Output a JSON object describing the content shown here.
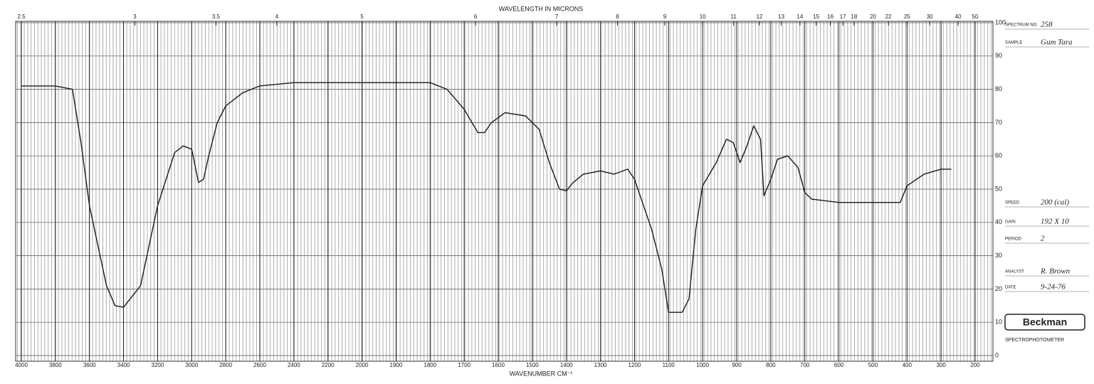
{
  "chart_data": {
    "type": "line",
    "x_label": "WAVENUMBER CM⁻¹",
    "x2_label": "WAVELENGTH IN MICRONS",
    "x": [
      4000,
      3800,
      3700,
      3650,
      3600,
      3500,
      3450,
      3400,
      3300,
      3200,
      3100,
      3050,
      3000,
      2960,
      2930,
      2900,
      2850,
      2800,
      2700,
      2600,
      2400,
      2200,
      2000,
      1800,
      1750,
      1700,
      1660,
      1640,
      1620,
      1580,
      1520,
      1480,
      1450,
      1420,
      1400,
      1380,
      1350,
      1300,
      1260,
      1220,
      1200,
      1150,
      1120,
      1100,
      1060,
      1040,
      1020,
      1000,
      960,
      930,
      910,
      890,
      870,
      850,
      830,
      820,
      800,
      780,
      750,
      720,
      700,
      680,
      600,
      500,
      420,
      400,
      350,
      300,
      270
    ],
    "series": [
      {
        "color": "#1a1a1a",
        "values": [
          81,
          81,
          80,
          64,
          45,
          21,
          15,
          14.5,
          21,
          45,
          61,
          63,
          62,
          52,
          53,
          60,
          70,
          75,
          79,
          81,
          82,
          82,
          82,
          82,
          80,
          74,
          67,
          67,
          70,
          73,
          72,
          68,
          58,
          50,
          49.5,
          52,
          54.5,
          55.5,
          54.5,
          56,
          53,
          38,
          26,
          13,
          13,
          17,
          38,
          51,
          58,
          65,
          64,
          58,
          63,
          69,
          65,
          48,
          53,
          59,
          60,
          56.5,
          49,
          47,
          46,
          46,
          46,
          51,
          54.5,
          56,
          56
        ]
      }
    ],
    "xlim": [
      4000,
      200
    ],
    "xticks": [
      4000,
      3800,
      3600,
      3400,
      3200,
      3000,
      2800,
      2600,
      2400,
      2200,
      2000,
      1900,
      1800,
      1700,
      1600,
      1500,
      1400,
      1300,
      1200,
      1100,
      1000,
      900,
      800,
      700,
      600,
      500,
      400,
      300,
      200
    ],
    "x2ticks": [
      2.5,
      3,
      3.5,
      4,
      5,
      6,
      7,
      8,
      9,
      10,
      11,
      12,
      13,
      14,
      15,
      16,
      17,
      18,
      20,
      22,
      25,
      30,
      40,
      50
    ],
    "ylim": [
      0,
      100
    ],
    "yticks": [
      0,
      10,
      20,
      30,
      40,
      50,
      60,
      70,
      80,
      90,
      100
    ],
    "grid": true
  },
  "form": [
    {
      "label": "SPECTRUM NO.",
      "value": "258"
    },
    {
      "label": "SAMPLE",
      "value": "Gum Tara"
    },
    {
      "label": "SPEED",
      "value": "200 (cal)"
    },
    {
      "label": "GAIN",
      "value": "192 X 10"
    },
    {
      "label": "PERIOD",
      "value": "2"
    },
    {
      "label": "ANALYST",
      "value": "R. Brown"
    },
    {
      "label": "DATE",
      "value": "9-24-76"
    }
  ],
  "brand": "Beckman",
  "instrument": "SPECTROPHOTOMETER"
}
